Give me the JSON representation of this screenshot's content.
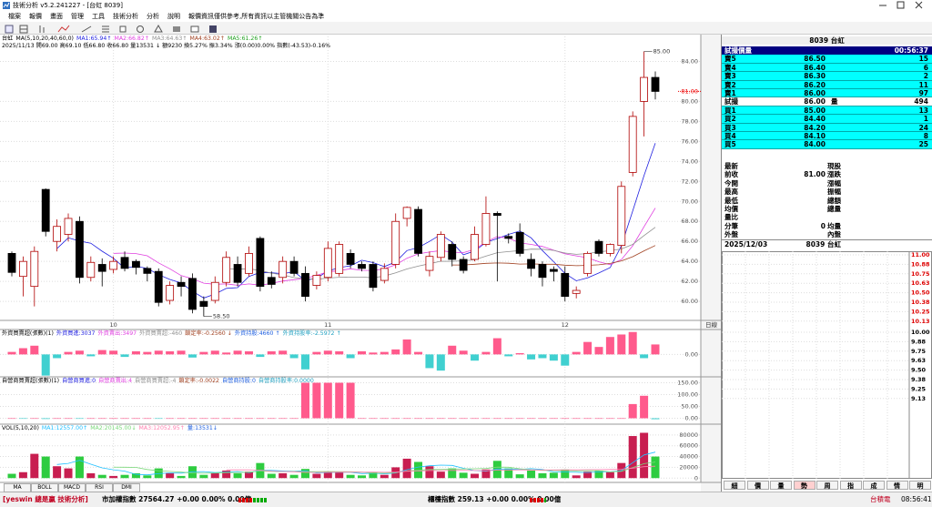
{
  "window": {
    "title": "技術分析 v5.2.241227 - [台虹 8039]"
  },
  "menu": [
    "檔案",
    "報價",
    "畫面",
    "管理",
    "工具",
    "技術分析",
    "分析",
    "說明"
  ],
  "notice": "報價資訊僅供參考,所有資訊以主管機關公告為準",
  "chart_data": [
    {
      "type": "candlestick",
      "title": "台虹",
      "subtitle": "MA(5,10,20,40,60,0)",
      "info": "2025/11/13 開69.00 高69.10 低66.80 收66.80 量13531 ↓ 額9230 換5.27% 振3.34% 漲(0.00)0.00% 指數(-43.53)-0.16%",
      "series": [
        {
          "name": "MA1:65.94↑",
          "color": "#2020e0",
          "period": 5
        },
        {
          "name": "MA2:66.82↑",
          "color": "#e040e0",
          "period": 10
        },
        {
          "name": "MA3:64.63↑",
          "color": "#909090",
          "period": 20
        },
        {
          "name": "MA4:63.02↑",
          "color": "#a04020",
          "period": 40
        },
        {
          "name": "MA5:61.26↑",
          "color": "#20a020",
          "period": 60
        }
      ],
      "categories": [
        null,
        null,
        null,
        null,
        null,
        null,
        null,
        null,
        null,
        "10",
        null,
        null,
        null,
        null,
        null,
        null,
        null,
        null,
        null,
        null,
        null,
        null,
        null,
        null,
        null,
        null,
        null,
        null,
        "11",
        null,
        null,
        null,
        null,
        null,
        null,
        null,
        null,
        null,
        null,
        null,
        null,
        null,
        null,
        null,
        null,
        null,
        null,
        null,
        null,
        "12",
        null,
        null,
        null,
        null,
        null,
        null,
        null,
        null
      ],
      "open": [
        64.8,
        62.5,
        61.5,
        71.2,
        66,
        66.7,
        68,
        62.4,
        63.7,
        63.2,
        64.4,
        64,
        63.3,
        63,
        60.1,
        61.9,
        62.3,
        60,
        60.1,
        61.9,
        63.7,
        62.8,
        66.3,
        62.4,
        62.4,
        64,
        62.8,
        61.6,
        62.4,
        62.8,
        64.8,
        63.7,
        63.7,
        62.1,
        63.7,
        68.3,
        69.2,
        63.1,
        64.4,
        65.7,
        64.2,
        64.2,
        65.7,
        68.8,
        66.5,
        66.9,
        64.2,
        63.7,
        63.2,
        62.8,
        60.8,
        62.8,
        66,
        64.8,
        65.6,
        72.9,
        80,
        82.4
      ],
      "high": [
        65,
        64.5,
        65.5,
        71.3,
        68.2,
        68.8,
        68.5,
        64.5,
        64.3,
        64.5,
        65,
        64.2,
        63.5,
        63.3,
        62,
        62.5,
        62.8,
        60.5,
        62.5,
        65,
        64.5,
        65.5,
        66.5,
        63,
        64.5,
        64.5,
        63.5,
        63,
        66,
        66,
        65.2,
        64,
        64,
        63.8,
        68.8,
        69.5,
        69.5,
        65,
        67,
        66,
        64.5,
        67.5,
        70.5,
        69,
        66.8,
        67.8,
        64.8,
        64,
        63.5,
        63.5,
        61.5,
        65,
        66.2,
        65.8,
        72,
        79,
        85,
        83
      ],
      "low": [
        62.5,
        60.5,
        59.5,
        66.5,
        65,
        66,
        61.8,
        62,
        61.5,
        62.8,
        63,
        62.7,
        62,
        59.5,
        59.7,
        60.5,
        58.8,
        58.5,
        59.8,
        61.5,
        61.5,
        62.5,
        61,
        61.3,
        61.8,
        62.5,
        60,
        61.2,
        62,
        62.5,
        63.3,
        63,
        61,
        61.8,
        63.3,
        67.5,
        64.5,
        62.5,
        64,
        63.5,
        62.8,
        64,
        65.5,
        62,
        65.8,
        64.5,
        62.5,
        61.5,
        62,
        60,
        60.3,
        62.5,
        64.5,
        64.5,
        64.8,
        72.5,
        76.5,
        80.2
      ],
      "close": [
        62.9,
        64,
        65,
        67,
        67.5,
        68.3,
        62.4,
        63.9,
        63,
        64,
        63.3,
        63.4,
        62.8,
        59.9,
        61.6,
        61.5,
        59.2,
        59.5,
        61.9,
        64.4,
        61.9,
        64.8,
        61.5,
        61.7,
        64,
        62.8,
        60.5,
        62.6,
        65.3,
        65.7,
        63.7,
        63.3,
        61.4,
        63.3,
        68,
        69.4,
        64.8,
        64.5,
        66.7,
        64.2,
        63.1,
        66.7,
        68.8,
        68.6,
        66.3,
        64.8,
        63.3,
        62.4,
        63,
        60.5,
        61.1,
        64.8,
        64.8,
        65.7,
        71.5,
        78.5,
        82.4,
        81
      ],
      "colors": {
        "up": "#b00000",
        "down": "#000000"
      },
      "ylim": [
        58.1,
        86.5
      ],
      "yticks": [
        {
          "value": 60,
          "label": "60.00"
        },
        {
          "value": 62,
          "label": "62.00"
        },
        {
          "value": 64,
          "label": "64.00"
        },
        {
          "value": 66,
          "label": "66.00"
        },
        {
          "value": 68,
          "label": "68.00"
        },
        {
          "value": 70,
          "label": "70.00"
        },
        {
          "value": 72,
          "label": "72.00"
        },
        {
          "value": 74,
          "label": "74.00"
        },
        {
          "value": 76,
          "label": "76.00"
        },
        {
          "value": 78,
          "label": "78.00"
        },
        {
          "value": 80,
          "label": "80.00"
        },
        {
          "value": 84,
          "label": "84.00"
        }
      ],
      "price_marker": {
        "value": 81,
        "label": "81.00"
      },
      "high_marker": {
        "value": 85,
        "label": "85.00"
      },
      "low_marker": {
        "value": 58.5,
        "label": "58.50"
      },
      "period_label": "日線",
      "grid": true
    },
    {
      "type": "bar",
      "legend": [
        {
          "text": "外資買賣超(張數)(1)",
          "color": "#000000"
        },
        {
          "text": "外資買進:3037",
          "color": "#2020e0"
        },
        {
          "text": "外資賣出:3497",
          "color": "#e040e0"
        },
        {
          "text": "外資買賣超:-460",
          "color": "#909090"
        },
        {
          "text": "鎖定率:-0.2560 ↓",
          "color": "#a04020"
        },
        {
          "text": "外資持股:4660 ↑",
          "color": "#2060e0"
        },
        {
          "text": "外資持股率:-2.5972 ↑",
          "color": "#20a0c0"
        }
      ],
      "values": [
        200,
        500,
        700,
        -1700,
        -300,
        200,
        300,
        -150,
        350,
        300,
        -200,
        250,
        200,
        300,
        250,
        300,
        -250,
        200,
        300,
        150,
        300,
        250,
        -200,
        250,
        300,
        -300,
        -1200,
        200,
        300,
        250,
        -300,
        250,
        150,
        200,
        400,
        1200,
        200,
        -1100,
        -1300,
        700,
        300,
        -500,
        200,
        1300,
        -150,
        100,
        -400,
        -300,
        -500,
        -900,
        200,
        1000,
        600,
        1400,
        1600,
        1800,
        -300,
        800
      ],
      "colors": {
        "up": "#ff5a8c",
        "down": "#40d0d0"
      },
      "ylim": [
        -1800,
        2000
      ],
      "yticks": [
        {
          "value": 0,
          "label": "0.00"
        }
      ]
    },
    {
      "type": "bar",
      "legend": [
        {
          "text": "自營商買賣超(張數)(1)",
          "color": "#000000"
        },
        {
          "text": "自營商買進:0",
          "color": "#2020e0"
        },
        {
          "text": "自營商賣出:4",
          "color": "#e040e0"
        },
        {
          "text": "自營商買賣超:-4",
          "color": "#909090"
        },
        {
          "text": "鎖定率:-0.0022",
          "color": "#a04020"
        },
        {
          "text": "自營商持股:0",
          "color": "#2060e0"
        },
        {
          "text": "自營商持股率:0.0000",
          "color": "#20a0c0"
        }
      ],
      "values": [
        0,
        -2,
        0,
        -3,
        0,
        0,
        -2,
        0,
        0,
        0,
        0,
        0,
        0,
        -2,
        0,
        0,
        0,
        0,
        0,
        0,
        0,
        0,
        0,
        0,
        0,
        0,
        150,
        150,
        150,
        150,
        150,
        0,
        0,
        0,
        0,
        0,
        0,
        0,
        0,
        0,
        0,
        0,
        0,
        0,
        0,
        0,
        0,
        0,
        0,
        0,
        0,
        0,
        0,
        0,
        0,
        60,
        95,
        -4
      ],
      "colors": {
        "up": "#ff5a8c",
        "down": "#40d0d0"
      },
      "ylim": [
        -25,
        175
      ],
      "yticks": [
        {
          "value": 0,
          "label": "0.00"
        },
        {
          "value": 50,
          "label": "50.00"
        },
        {
          "value": 100,
          "label": "100.00"
        },
        {
          "value": 150,
          "label": "150.00"
        }
      ]
    },
    {
      "type": "volume",
      "title": "VOL(5,10,20)",
      "series": [
        {
          "name": "MA1:12557.00↑",
          "color": "#20c0ff",
          "period": 5
        },
        {
          "name": "MA2:20145.00↓",
          "color": "#7ad87a",
          "period": 10
        },
        {
          "name": "MA3:12052.95↑",
          "color": "#ff80b0",
          "period": 20
        }
      ],
      "volume_label": "量:13531↓",
      "values": [
        8000,
        11000,
        45000,
        40000,
        22000,
        18000,
        40000,
        9000,
        6000,
        4000,
        6000,
        9000,
        5000,
        18000,
        10000,
        4000,
        22000,
        6000,
        9000,
        14000,
        9000,
        12000,
        28000,
        8000,
        9000,
        6000,
        17000,
        8000,
        12000,
        11000,
        6000,
        5000,
        11000,
        6000,
        20000,
        36000,
        30000,
        22000,
        12000,
        18000,
        10000,
        8000,
        16000,
        32000,
        18000,
        7000,
        14000,
        9000,
        10000,
        16000,
        5000,
        12000,
        14000,
        11000,
        28000,
        78000,
        84000,
        40000
      ],
      "colors": {
        "up": "#c81e50",
        "down": "#2ecc40"
      },
      "ylim": [
        -8000,
        100000
      ],
      "yticks": [
        0,
        20000,
        40000,
        60000,
        80000
      ]
    }
  ],
  "indicator_tabs": [
    "MA",
    "BOLL",
    "MACD",
    "RSI",
    "DMI"
  ],
  "quote": {
    "symbol": "8039 台虹",
    "header": {
      "title": "試撮價量",
      "time": "00:56:37"
    },
    "asks": [
      [
        "賣5",
        "86.50",
        "15"
      ],
      [
        "賣4",
        "86.40",
        "6"
      ],
      [
        "賣3",
        "86.30",
        "2"
      ],
      [
        "賣2",
        "86.20",
        "11"
      ],
      [
        "賣1",
        "86.00",
        "97"
      ]
    ],
    "match": [
      "試撮",
      "86.00",
      "量",
      "494"
    ],
    "bids": [
      [
        "買1",
        "85.00",
        "13"
      ],
      [
        "買2",
        "84.40",
        "1"
      ],
      [
        "買3",
        "84.20",
        "24"
      ],
      [
        "買4",
        "84.10",
        "8"
      ],
      [
        "買5",
        "84.00",
        "25"
      ]
    ],
    "info": [
      {
        "label": "最新",
        "label2": "現股"
      },
      {
        "label": "前收",
        "value": "81.00",
        "label2": "漲跌"
      },
      {
        "label": "今開",
        "label2": "漲幅"
      },
      {
        "label": "最高",
        "label2": "振幅"
      },
      {
        "label": "最低",
        "label2": "總額"
      },
      {
        "label": "均價",
        "label2": "總量"
      },
      {
        "label": "量比"
      },
      {
        "label": "分筆",
        "value": "0",
        "label2": "均量"
      },
      {
        "label": "外盤",
        "label2": "內盤"
      }
    ],
    "footer": {
      "date": "2025/12/03",
      "symbol": "8039 台虹"
    },
    "mini_axis": {
      "upper": [
        "11.00",
        "10.88",
        "10.75",
        "10.63",
        "10.50",
        "10.38",
        "10.25",
        "10.13"
      ],
      "lower": [
        "10.00",
        "9.88",
        "9.75",
        "9.63",
        "9.50",
        "9.38",
        "9.25",
        "9.13"
      ]
    },
    "tabs": [
      "細",
      "價",
      "量",
      "勢",
      "周",
      "指",
      "成",
      "情",
      "明"
    ]
  },
  "status_bar": {
    "brand": "[yeswin 總是贏 技術分析]",
    "taiex": "市加權指數 27564.27 +0.00 0.00% 0.00億",
    "otc": "櫃檯指數 259.13 +0.00 0.00% 0.00億",
    "stock": "台積電",
    "time": "08:56:41"
  }
}
